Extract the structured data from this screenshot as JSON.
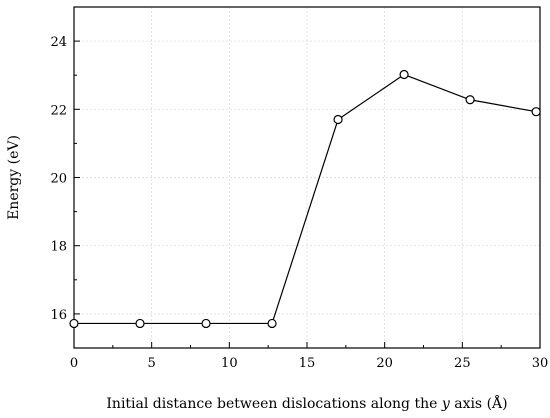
{
  "chart_data": {
    "type": "line",
    "title": "",
    "xlabel": "Initial distance between dislocations along the y axis (Å)",
    "xlabel_parts": [
      "Initial distance between dislocations along the ",
      "y",
      " axis (Å)"
    ],
    "ylabel": "Energy (eV)",
    "xlim": [
      0,
      30
    ],
    "ylim": [
      15,
      25
    ],
    "xticks": [
      0,
      5,
      10,
      15,
      20,
      25,
      30
    ],
    "yticks": [
      16,
      18,
      20,
      22,
      24
    ],
    "grid": true,
    "legend": "none",
    "series": [
      {
        "x": [
          0,
          4.25,
          8.5,
          12.75,
          17.0,
          21.25,
          25.5,
          29.75
        ],
        "y": [
          15.72,
          15.72,
          15.72,
          15.72,
          21.7,
          23.02,
          22.28,
          21.93
        ],
        "marker": "open-circle",
        "color": "#000000"
      }
    ]
  }
}
